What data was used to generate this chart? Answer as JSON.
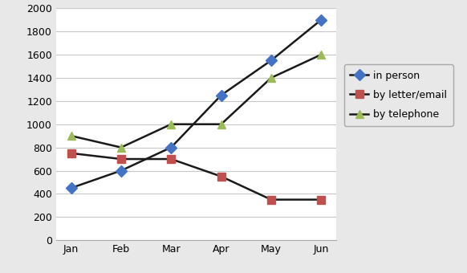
{
  "months": [
    "Jan",
    "Feb",
    "Mar",
    "Apr",
    "May",
    "Jun"
  ],
  "in_person": [
    450,
    600,
    800,
    1250,
    1550,
    1900
  ],
  "by_letter_email": [
    750,
    700,
    700,
    550,
    350,
    350
  ],
  "by_telephone": [
    900,
    800,
    1000,
    1000,
    1400,
    1600
  ],
  "line_color": "#1a1a1a",
  "marker_in_person": "D",
  "marker_letter": "s",
  "marker_telephone": "^",
  "marker_color_in_person": "#4472c4",
  "marker_color_letter": "#c0504d",
  "marker_color_telephone": "#9bbb59",
  "legend_labels": [
    "in person",
    "by letter/email",
    "by telephone"
  ],
  "ylim": [
    0,
    2000
  ],
  "yticks": [
    0,
    200,
    400,
    600,
    800,
    1000,
    1200,
    1400,
    1600,
    1800,
    2000
  ],
  "grid_color": "#c8c8c8",
  "bg_color": "#ffffff",
  "outer_bg": "#e8e8e8",
  "figsize": [
    5.82,
    3.4
  ],
  "dpi": 100
}
